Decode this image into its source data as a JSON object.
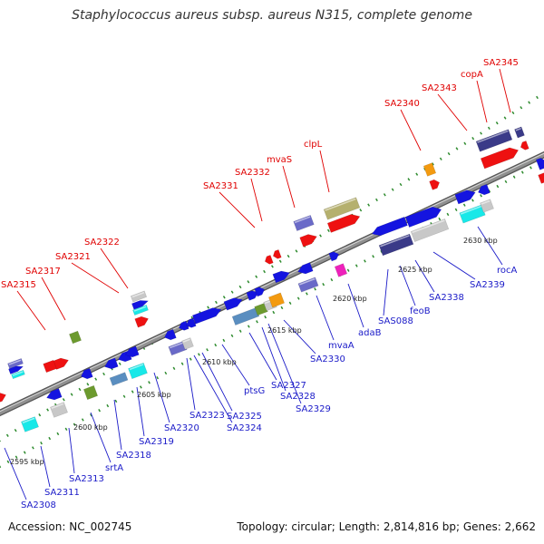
{
  "title": "Staphylococcus aureus subsp. aureus N315, complete genome",
  "footer": {
    "accession": "Accession: NC_002745",
    "summary": "Topology: circular; Length: 2,814,816 bp; Genes: 2,662"
  },
  "colors": {
    "backbone": "#909090",
    "backbone_dark": "#555555",
    "label_top": "#e00000",
    "label_bottom": "#1a1ac8",
    "tick": "#2e8b2e",
    "feature_blue": "#1414e0",
    "feature_red": "#ee1111",
    "feature_slate": "#6a6ac8",
    "feature_olive": "#b5b06e",
    "feature_cyan": "#18e8e8",
    "feature_gray": "#c8c8c8",
    "feature_orange": "#f39a10",
    "feature_green": "#6c9a2e",
    "feature_magenta": "#ee22bb",
    "feature_navy": "#3a3a88",
    "feature_steel": "#5a8ec0"
  },
  "scale_labels": [
    "2595 kbp",
    "2600 kbp",
    "2605 kbp",
    "2610 kbp",
    "2615 kbp",
    "2620 kbp",
    "2625 kbp",
    "2630 kbp"
  ],
  "top_labels": [
    "SA2315",
    "SA2317",
    "SA2321",
    "SA2322",
    "SA2331",
    "SA2332",
    "mvaS",
    "clpL",
    "SA2340",
    "SA2343",
    "copA",
    "SA2345"
  ],
  "bottom_labels": [
    "SA2308",
    "SA2311",
    "SA2313",
    "srtA",
    "SA2318",
    "SA2319",
    "SA2320",
    "SA2323",
    "SA2324",
    "SA2325",
    "ptsG",
    "SA2327",
    "SA2328",
    "SA2329",
    "SA2330",
    "mvaA",
    "adaB",
    "SAS088",
    "feoB",
    "SA2338",
    "SA2339",
    "rocA"
  ]
}
